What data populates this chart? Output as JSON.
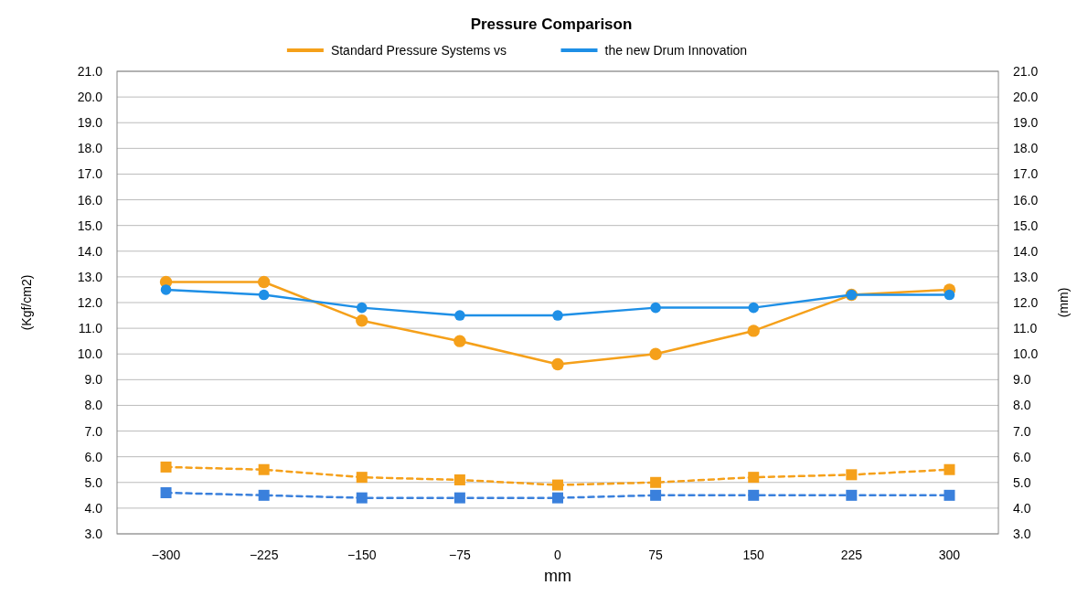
{
  "chart_data": {
    "type": "line",
    "title": "Pressure Comparison",
    "xlabel": "mm",
    "ylabel": "(Kgf/cm2)",
    "y2label": "(mm)",
    "categories": [
      "−300",
      "−225",
      "−150",
      "−75",
      "0",
      "75",
      "150",
      "225",
      "300"
    ],
    "ylim": [
      3,
      21
    ],
    "yticks": [
      {
        "value": 3,
        "label": "3.0"
      },
      {
        "value": 4,
        "label": "4.0"
      },
      {
        "value": 5,
        "label": "5.0"
      },
      {
        "value": 6,
        "label": "6.0"
      },
      {
        "value": 7,
        "label": "7.0"
      },
      {
        "value": 8,
        "label": "8.0"
      },
      {
        "value": 9,
        "label": "9.0"
      },
      {
        "value": 10,
        "label": "10.0"
      },
      {
        "value": 11,
        "label": "11.0"
      },
      {
        "value": 12,
        "label": "12.0"
      },
      {
        "value": 13,
        "label": "13.0"
      },
      {
        "value": 14,
        "label": "14.0"
      },
      {
        "value": 15,
        "label": "15.0"
      },
      {
        "value": 16,
        "label": "16.0"
      },
      {
        "value": 17,
        "label": "17.0"
      },
      {
        "value": 18,
        "label": "18.0"
      },
      {
        "value": 19,
        "label": "19.0"
      },
      {
        "value": 20,
        "label": "20.0"
      },
      {
        "value": 21,
        "label": "21.0"
      }
    ],
    "y2lim": [
      3,
      21
    ],
    "y2ticks": [
      {
        "value": 3,
        "label": "3.0"
      },
      {
        "value": 4,
        "label": "4.0"
      },
      {
        "value": 5,
        "label": "5.0"
      },
      {
        "value": 6,
        "label": "6.0"
      },
      {
        "value": 7,
        "label": "7.0"
      },
      {
        "value": 8,
        "label": "8.0"
      },
      {
        "value": 9,
        "label": "9.0"
      },
      {
        "value": 10,
        "label": "10.0"
      },
      {
        "value": 11,
        "label": "11.0"
      },
      {
        "value": 12,
        "label": "12.0"
      },
      {
        "value": 13,
        "label": "13.0"
      },
      {
        "value": 14,
        "label": "14.0"
      },
      {
        "value": 15,
        "label": "15.0"
      },
      {
        "value": 16,
        "label": "16.0"
      },
      {
        "value": 17,
        "label": "17.0"
      },
      {
        "value": 18,
        "label": "18.0"
      },
      {
        "value": 19,
        "label": "19.0"
      },
      {
        "value": 20,
        "label": "20.0"
      },
      {
        "value": 21,
        "label": "21.0"
      }
    ],
    "grid": "y",
    "legend": "top",
    "series": [
      {
        "name": "Standard Pressure Systems vs",
        "color": "#f5a01a",
        "marker": "circle",
        "line_style": "solid",
        "values": [
          12.8,
          12.8,
          11.3,
          10.5,
          9.6,
          10.0,
          10.9,
          12.3,
          12.5
        ]
      },
      {
        "name": "the new Drum Innovation",
        "color": "#1e8fe6",
        "marker": "circle",
        "line_style": "solid",
        "values": [
          12.5,
          12.3,
          11.8,
          11.5,
          11.5,
          11.8,
          11.8,
          12.3,
          12.3
        ]
      },
      {
        "color": "#f5a01a",
        "marker": "square",
        "line_style": "dashed",
        "values": [
          5.6,
          5.5,
          5.2,
          5.1,
          4.9,
          5.0,
          5.2,
          5.3,
          5.5
        ]
      },
      {
        "color": "#3a80dc",
        "marker": "square",
        "line_style": "dashed",
        "values": [
          4.6,
          4.5,
          4.4,
          4.4,
          4.4,
          4.5,
          4.5,
          4.5,
          4.5
        ]
      }
    ]
  }
}
